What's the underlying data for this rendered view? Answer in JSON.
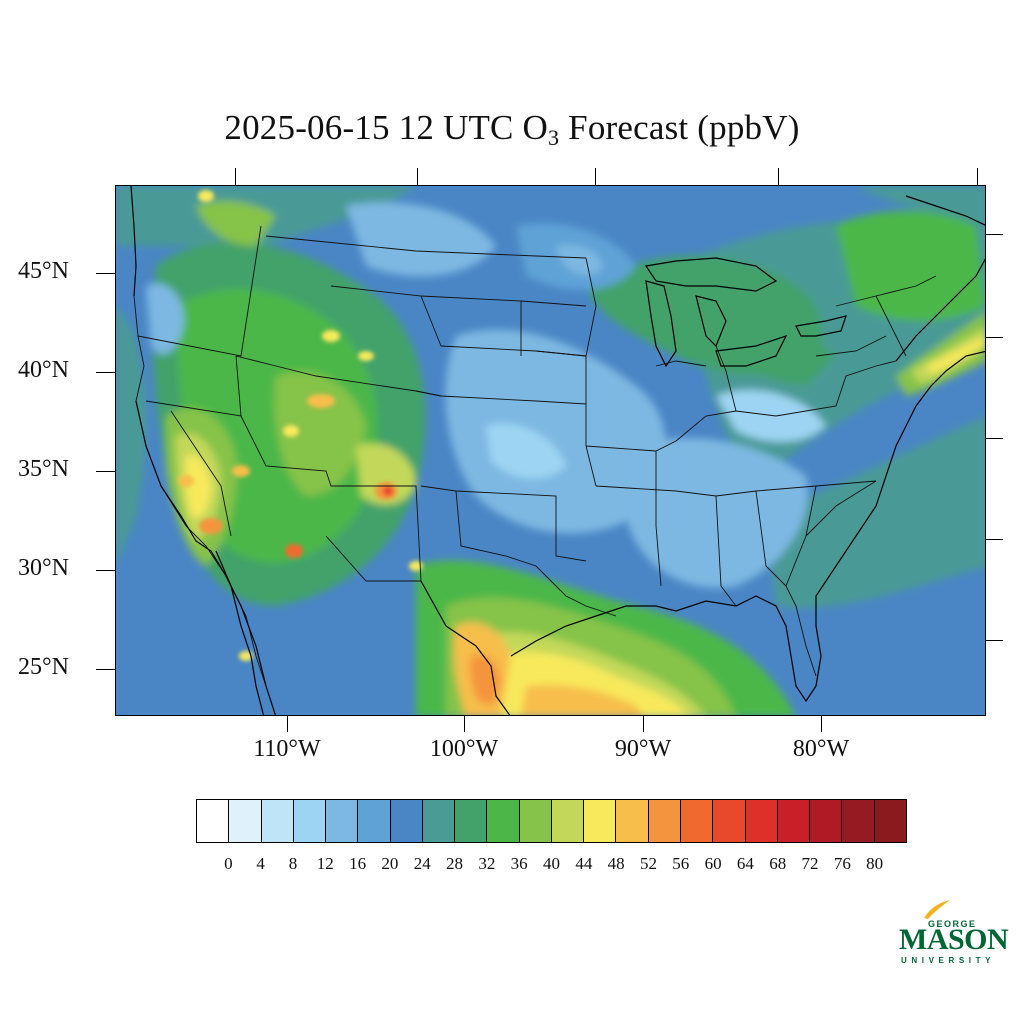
{
  "title": {
    "prefix": "2025-06-15 12 UTC O",
    "subscript": "3",
    "suffix": " Forecast (ppbV)"
  },
  "map": {
    "region": "Contiguous United States",
    "lat_labels": [
      "45°N",
      "40°N",
      "35°N",
      "30°N",
      "25°N"
    ],
    "lon_labels": [
      "110°W",
      "100°W",
      "90°W",
      "80°W"
    ],
    "background_color": "#4a86c5"
  },
  "colorbar": {
    "labels": [
      "0",
      "4",
      "8",
      "12",
      "16",
      "20",
      "24",
      "28",
      "32",
      "36",
      "40",
      "44",
      "48",
      "52",
      "56",
      "60",
      "64",
      "68",
      "72",
      "76",
      "80"
    ],
    "colors": [
      "#ffffff",
      "#dff1fb",
      "#bfe4f8",
      "#9dd4f3",
      "#7db8e2",
      "#5fa2d6",
      "#4a86c5",
      "#4a9a96",
      "#43a26a",
      "#4cb748",
      "#86c34a",
      "#c3d85a",
      "#f8e95c",
      "#f7be4b",
      "#f5943e",
      "#f06a2e",
      "#e8492c",
      "#de3029",
      "#c81f28",
      "#b01a24",
      "#961a22",
      "#8a1a1e"
    ]
  },
  "logo": {
    "line1": "GEORGE",
    "line2": "MASON",
    "line3": "UNIVERSITY",
    "color": "#006633",
    "accent": "#f2b31d"
  }
}
